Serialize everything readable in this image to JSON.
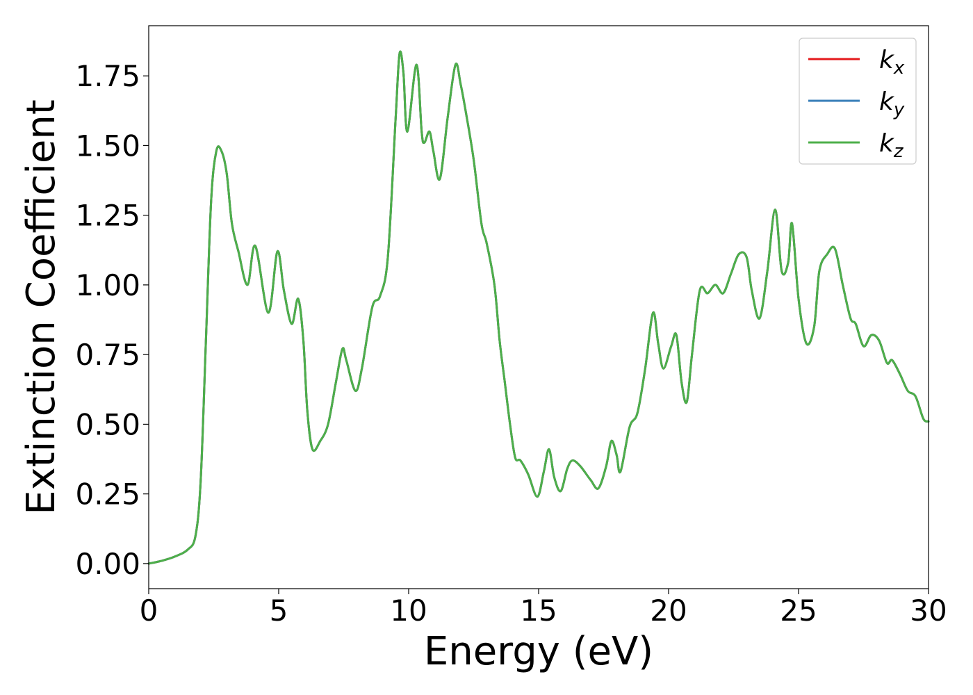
{
  "chart_data": {
    "type": "line",
    "xlabel": "Energy (eV)",
    "ylabel": "Extinction Coefficient",
    "xlim": [
      0,
      30
    ],
    "ylim": [
      -0.09,
      1.93
    ],
    "xticks": [
      0,
      5,
      10,
      15,
      20,
      25,
      30
    ],
    "xtick_labels": [
      "0",
      "5",
      "10",
      "15",
      "20",
      "25",
      "30"
    ],
    "yticks": [
      0.0,
      0.25,
      0.5,
      0.75,
      1.0,
      1.25,
      1.5,
      1.75
    ],
    "ytick_labels": [
      "0.00",
      "0.25",
      "0.50",
      "0.75",
      "1.00",
      "1.25",
      "1.50",
      "1.75"
    ],
    "grid": false,
    "legend_position": "top-right",
    "x": [
      0,
      0.5,
      1.0,
      1.5,
      1.8,
      2.0,
      2.2,
      2.4,
      2.6,
      2.8,
      3.0,
      3.2,
      3.45,
      3.8,
      4.1,
      4.6,
      4.95,
      5.2,
      5.5,
      5.75,
      5.95,
      6.1,
      6.3,
      6.6,
      6.9,
      7.2,
      7.45,
      7.6,
      7.95,
      8.2,
      8.6,
      8.9,
      9.2,
      9.5,
      9.65,
      9.8,
      9.95,
      10.3,
      10.5,
      10.6,
      10.8,
      10.95,
      11.2,
      11.5,
      11.8,
      12.0,
      12.2,
      12.5,
      12.8,
      13.0,
      13.3,
      13.5,
      13.7,
      13.9,
      14.1,
      14.3,
      14.6,
      14.95,
      15.2,
      15.4,
      15.6,
      15.85,
      16.1,
      16.3,
      16.6,
      17.0,
      17.3,
      17.6,
      17.8,
      18.0,
      18.15,
      18.5,
      18.8,
      19.1,
      19.4,
      19.6,
      19.8,
      20.1,
      20.3,
      20.5,
      20.7,
      20.9,
      21.2,
      21.5,
      21.8,
      22.1,
      22.4,
      22.7,
      23.0,
      23.2,
      23.5,
      23.8,
      24.1,
      24.35,
      24.6,
      24.75,
      25.0,
      25.3,
      25.6,
      25.8,
      26.1,
      26.4,
      26.7,
      27.0,
      27.2,
      27.5,
      27.8,
      28.1,
      28.4,
      28.6,
      28.9,
      29.2,
      29.5,
      29.8,
      30.0
    ],
    "series": [
      {
        "name": "k_x",
        "color": "#e41a1c",
        "values": [
          0.0,
          0.01,
          0.025,
          0.05,
          0.1,
          0.3,
          0.8,
          1.3,
          1.48,
          1.48,
          1.4,
          1.22,
          1.12,
          1.0,
          1.14,
          0.9,
          1.12,
          0.98,
          0.86,
          0.95,
          0.8,
          0.55,
          0.41,
          0.44,
          0.5,
          0.65,
          0.77,
          0.73,
          0.62,
          0.7,
          0.92,
          0.96,
          1.1,
          1.6,
          1.83,
          1.76,
          1.55,
          1.79,
          1.55,
          1.51,
          1.55,
          1.48,
          1.38,
          1.6,
          1.79,
          1.72,
          1.62,
          1.45,
          1.22,
          1.15,
          1.0,
          0.8,
          0.65,
          0.5,
          0.38,
          0.37,
          0.32,
          0.24,
          0.33,
          0.41,
          0.31,
          0.26,
          0.34,
          0.37,
          0.35,
          0.3,
          0.27,
          0.35,
          0.44,
          0.39,
          0.33,
          0.49,
          0.54,
          0.7,
          0.9,
          0.79,
          0.7,
          0.78,
          0.82,
          0.65,
          0.58,
          0.75,
          0.98,
          0.97,
          1.0,
          0.97,
          1.04,
          1.11,
          1.1,
          0.98,
          0.88,
          1.05,
          1.27,
          1.05,
          1.08,
          1.22,
          0.95,
          0.79,
          0.85,
          1.05,
          1.11,
          1.13,
          1.0,
          0.88,
          0.86,
          0.78,
          0.82,
          0.8,
          0.72,
          0.73,
          0.68,
          0.62,
          0.6,
          0.52,
          0.51
        ]
      },
      {
        "name": "k_y",
        "color": "#377eb8",
        "values": [
          0.0,
          0.01,
          0.025,
          0.05,
          0.1,
          0.3,
          0.8,
          1.3,
          1.48,
          1.48,
          1.4,
          1.22,
          1.12,
          1.0,
          1.14,
          0.9,
          1.12,
          0.98,
          0.86,
          0.95,
          0.8,
          0.55,
          0.41,
          0.44,
          0.5,
          0.65,
          0.77,
          0.73,
          0.62,
          0.7,
          0.92,
          0.96,
          1.1,
          1.6,
          1.83,
          1.76,
          1.55,
          1.79,
          1.55,
          1.51,
          1.55,
          1.48,
          1.38,
          1.6,
          1.79,
          1.72,
          1.62,
          1.45,
          1.22,
          1.15,
          1.0,
          0.8,
          0.65,
          0.5,
          0.38,
          0.37,
          0.32,
          0.24,
          0.33,
          0.41,
          0.31,
          0.26,
          0.34,
          0.37,
          0.35,
          0.3,
          0.27,
          0.35,
          0.44,
          0.39,
          0.33,
          0.49,
          0.54,
          0.7,
          0.9,
          0.79,
          0.7,
          0.78,
          0.82,
          0.65,
          0.58,
          0.75,
          0.98,
          0.97,
          1.0,
          0.97,
          1.04,
          1.11,
          1.1,
          0.98,
          0.88,
          1.05,
          1.27,
          1.05,
          1.08,
          1.22,
          0.95,
          0.79,
          0.85,
          1.05,
          1.11,
          1.13,
          1.0,
          0.88,
          0.86,
          0.78,
          0.82,
          0.8,
          0.72,
          0.73,
          0.68,
          0.62,
          0.6,
          0.52,
          0.51
        ]
      },
      {
        "name": "k_z",
        "color": "#4daf4a",
        "values": [
          0.0,
          0.01,
          0.025,
          0.05,
          0.1,
          0.3,
          0.8,
          1.3,
          1.48,
          1.48,
          1.4,
          1.22,
          1.12,
          1.0,
          1.14,
          0.9,
          1.12,
          0.98,
          0.86,
          0.95,
          0.8,
          0.55,
          0.41,
          0.44,
          0.5,
          0.65,
          0.77,
          0.73,
          0.62,
          0.7,
          0.92,
          0.96,
          1.1,
          1.6,
          1.83,
          1.76,
          1.55,
          1.79,
          1.55,
          1.51,
          1.55,
          1.48,
          1.38,
          1.6,
          1.79,
          1.72,
          1.62,
          1.45,
          1.22,
          1.15,
          1.0,
          0.8,
          0.65,
          0.5,
          0.38,
          0.37,
          0.32,
          0.24,
          0.33,
          0.41,
          0.31,
          0.26,
          0.34,
          0.37,
          0.35,
          0.3,
          0.27,
          0.35,
          0.44,
          0.39,
          0.33,
          0.49,
          0.54,
          0.7,
          0.9,
          0.79,
          0.7,
          0.78,
          0.82,
          0.65,
          0.58,
          0.75,
          0.98,
          0.97,
          1.0,
          0.97,
          1.04,
          1.11,
          1.1,
          0.98,
          0.88,
          1.05,
          1.27,
          1.05,
          1.08,
          1.22,
          0.95,
          0.79,
          0.85,
          1.05,
          1.11,
          1.13,
          1.0,
          0.88,
          0.86,
          0.78,
          0.82,
          0.8,
          0.72,
          0.73,
          0.68,
          0.62,
          0.6,
          0.52,
          0.51
        ]
      }
    ],
    "legend": [
      {
        "base": "k",
        "sub": "x",
        "color": "#e41a1c"
      },
      {
        "base": "k",
        "sub": "y",
        "color": "#377eb8"
      },
      {
        "base": "k",
        "sub": "z",
        "color": "#4daf4a"
      }
    ]
  }
}
